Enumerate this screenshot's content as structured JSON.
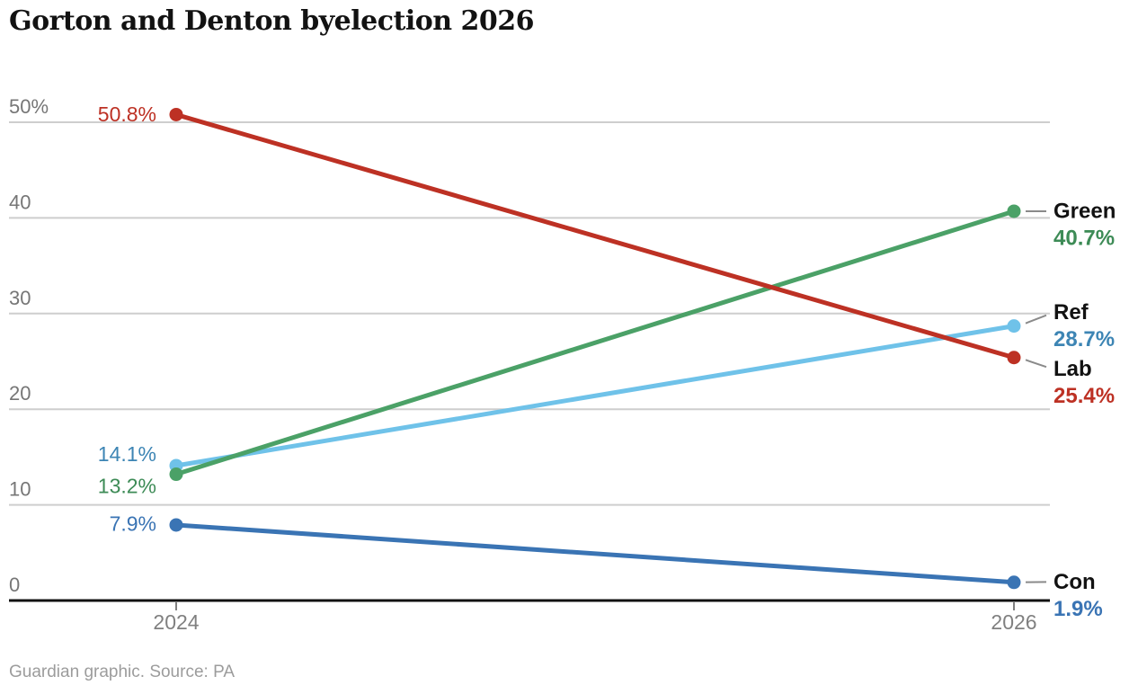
{
  "title": "Gorton and Denton byelection 2026",
  "source_note": "Guardian graphic. Source: PA",
  "colors": {
    "title": "#121212",
    "grid": "#cecece",
    "axis": "#121212",
    "tick_label": "#767676",
    "x_tick_label": "#808080",
    "connector": "#8a8a8a",
    "party_name": "#121212",
    "source": "#9c9c9c",
    "background": "#ffffff"
  },
  "chart_data": {
    "type": "line",
    "subtype": "slope",
    "title": "Gorton and Denton byelection 2026",
    "x": [
      2024,
      2026
    ],
    "x_tick_labels": [
      "2024",
      "2026"
    ],
    "y_ticks": [
      0,
      10,
      20,
      30,
      40,
      50
    ],
    "y_tick_labels": [
      "0",
      "10",
      "20",
      "30",
      "40",
      "50%"
    ],
    "ylim": [
      0,
      53
    ],
    "grid": true,
    "legend_position": "inline-right",
    "series": [
      {
        "name": "Con",
        "values": [
          7.9,
          1.9
        ],
        "line_color": "#3a74b4",
        "text_color": "#3a74b4",
        "start_label": "7.9%",
        "end_label": "1.9%"
      },
      {
        "name": "Ref",
        "values": [
          14.1,
          28.7
        ],
        "line_color": "#6fc2e9",
        "text_color": "#3d85b4",
        "start_label": "14.1%",
        "end_label": "28.7%"
      },
      {
        "name": "Green",
        "values": [
          13.2,
          40.7
        ],
        "line_color": "#4ba167",
        "text_color": "#3d8b56",
        "start_label": "13.2%",
        "end_label": "40.7%"
      },
      {
        "name": "Lab",
        "values": [
          50.8,
          25.4
        ],
        "line_color": "#bd3124",
        "text_color": "#bd3124",
        "start_label": "50.8%",
        "end_label": "25.4%"
      }
    ]
  }
}
